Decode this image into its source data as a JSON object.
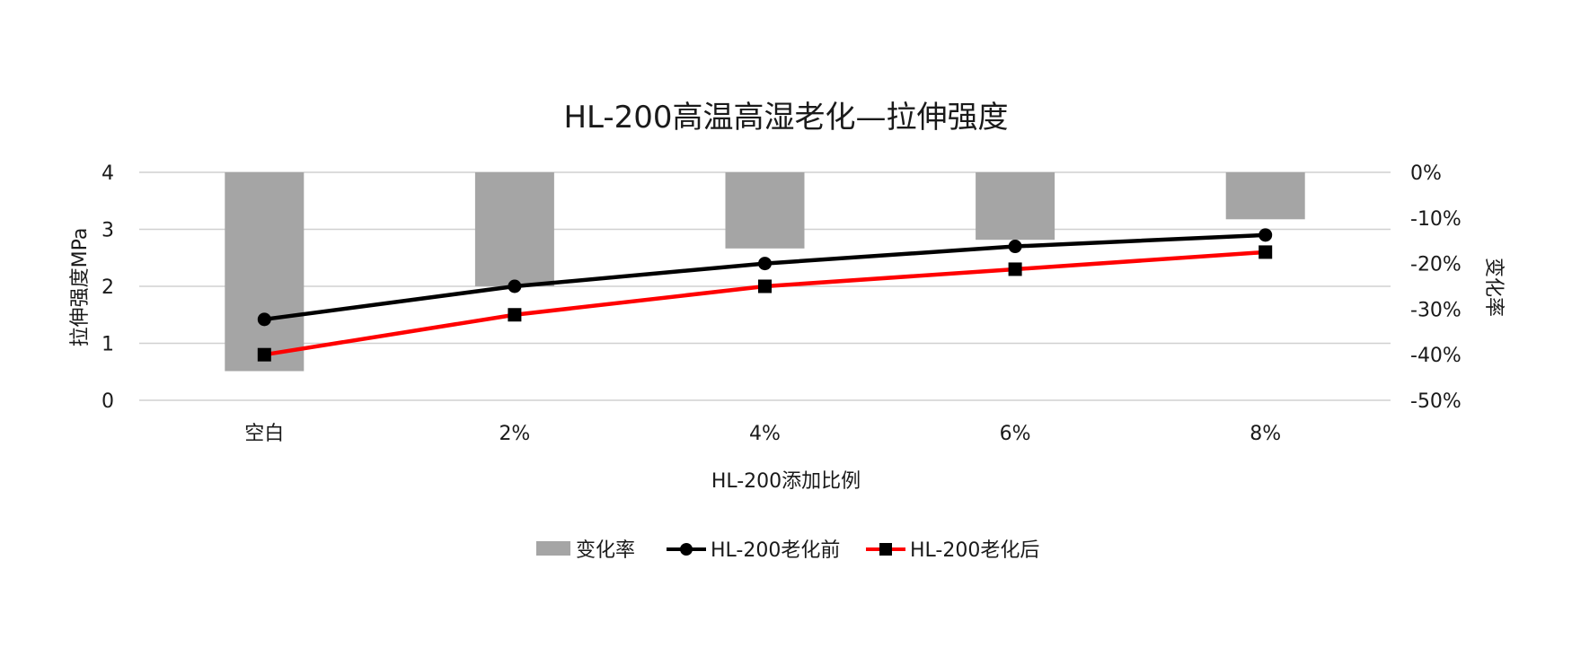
{
  "chart_data": {
    "type": "bar+line",
    "title": "HL-200高温高湿老化—拉伸强度",
    "xlabel": "HL-200添加比例",
    "ylabel": "拉伸强度MPa",
    "y2label": "变化率",
    "categories": [
      "空白",
      "2%",
      "4%",
      "6%",
      "8%"
    ],
    "yticks": [
      "0",
      "1",
      "2",
      "3",
      "4"
    ],
    "ylim": [
      0,
      4
    ],
    "y2ticks": [
      "0%",
      "-10%",
      "-20%",
      "-30%",
      "-40%",
      "-50%"
    ],
    "y2lim": [
      -50,
      0
    ],
    "grid": true,
    "legend_position": "bottom",
    "series": [
      {
        "name": "变化率",
        "kind": "bar",
        "axis": "secondary",
        "color": "#a5a5a5",
        "values": [
          -43.6,
          -25.0,
          -16.7,
          -14.8,
          -10.3
        ]
      },
      {
        "name": "HL-200老化前",
        "kind": "line",
        "axis": "primary",
        "marker": "circle",
        "color": "#000000",
        "values": [
          1.42,
          2.0,
          2.4,
          2.7,
          2.9
        ]
      },
      {
        "name": "HL-200老化后",
        "kind": "line",
        "axis": "primary",
        "marker": "square",
        "color": "#ff0000",
        "values": [
          0.8,
          1.5,
          2.0,
          2.3,
          2.6
        ]
      }
    ]
  }
}
